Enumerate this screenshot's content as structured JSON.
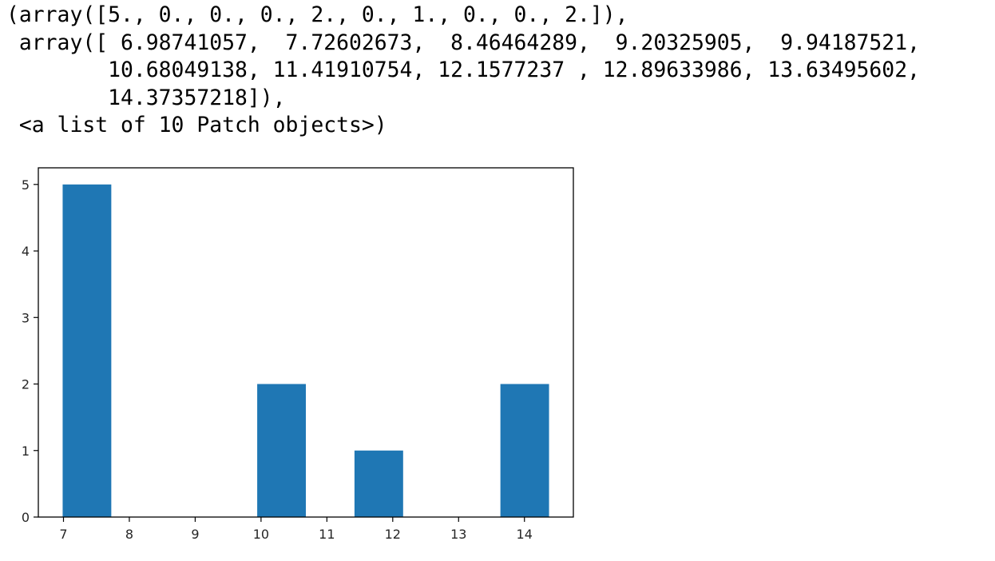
{
  "output": {
    "lines": [
      "(array([5., 0., 0., 0., 2., 0., 1., 0., 0., 2.]),",
      " array([ 6.98741057,  7.72602673,  8.46464289,  9.20325905,  9.94187521,",
      "        10.68049138, 11.41910754, 12.1577237 , 12.89633986, 13.63495602,",
      "        14.37357218]),",
      " <a list of 10 Patch objects>)"
    ]
  },
  "chart_data": {
    "type": "bar",
    "title": "",
    "xlabel": "",
    "ylabel": "",
    "bin_edges": [
      6.98741057,
      7.72602673,
      8.46464289,
      9.20325905,
      9.94187521,
      10.68049138,
      11.41910754,
      12.1577237,
      12.89633986,
      13.63495602,
      14.37357218
    ],
    "counts": [
      5,
      0,
      0,
      0,
      2,
      0,
      1,
      0,
      0,
      2
    ],
    "xlim": [
      6.6181,
      14.7429
    ],
    "ylim": [
      0,
      5.25
    ],
    "xticks": [
      7,
      8,
      9,
      10,
      11,
      12,
      13,
      14
    ],
    "yticks": [
      0,
      1,
      2,
      3,
      4,
      5
    ],
    "bar_color": "#1f77b4",
    "grid": false,
    "legend": "none"
  }
}
